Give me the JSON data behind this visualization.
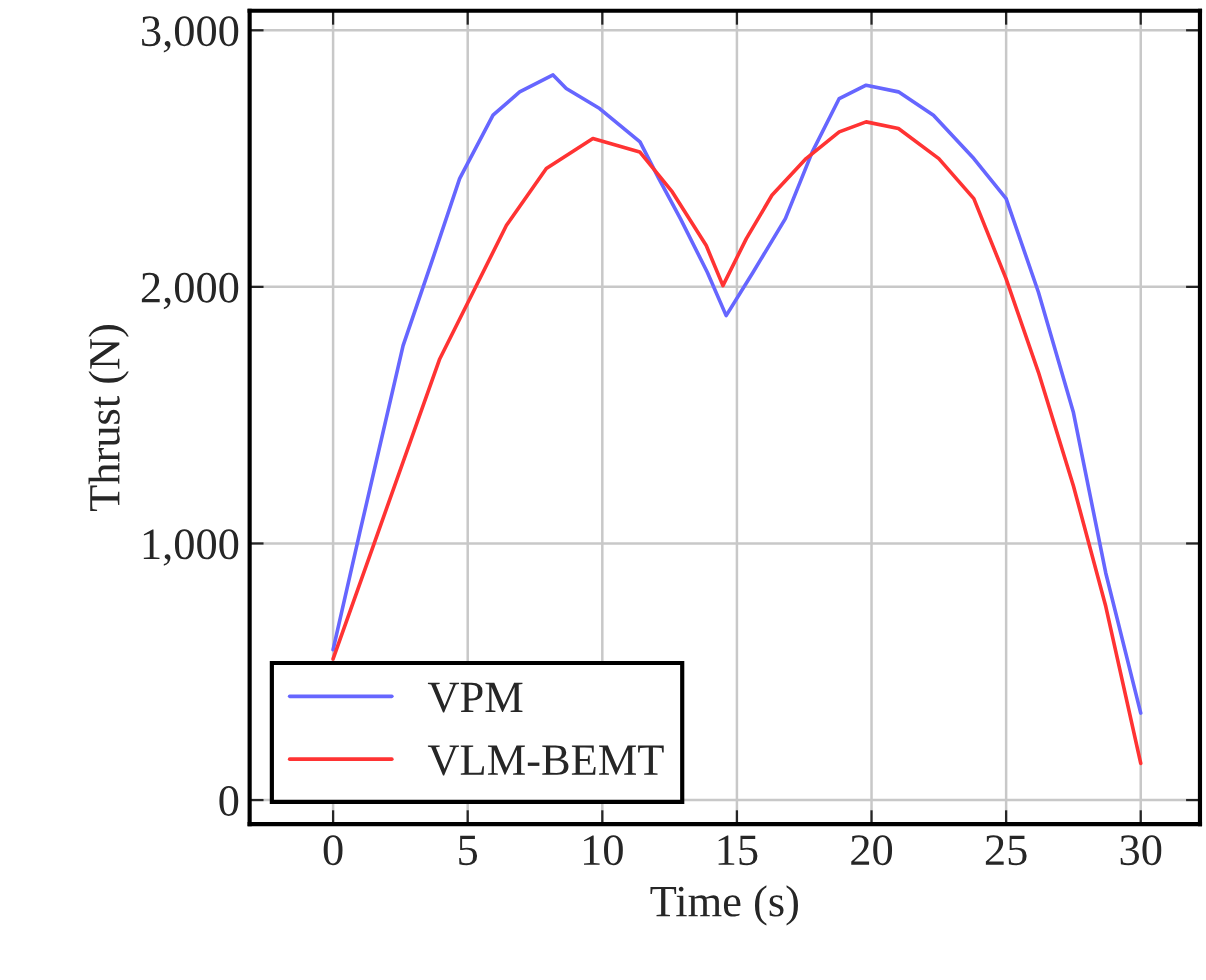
{
  "chart_data": {
    "type": "line",
    "xlabel": "Time (s)",
    "ylabel": "Thrust (N)",
    "xlim": [
      -3.1,
      32.2
    ],
    "ylim": [
      -94,
      3076
    ],
    "xticks": [
      0,
      5,
      10,
      15,
      20,
      25,
      30
    ],
    "yticks": [
      {
        "value": 0,
        "label": "0"
      },
      {
        "value": 1000,
        "label": "1,000"
      },
      {
        "value": 2000,
        "label": "2,000"
      },
      {
        "value": 3000,
        "label": "3,000"
      }
    ],
    "grid": true,
    "legend": "bottom left",
    "marker": "none",
    "line_style": "solid",
    "series": [
      {
        "name": "VPM",
        "color": "#6666ff",
        "x": [
          0,
          0.99,
          2.6,
          3.7,
          4.7,
          5.94,
          6.93,
          8.17,
          8.66,
          9.9,
          11.4,
          12.1,
          12.9,
          13.9,
          14.6,
          15.6,
          16.8,
          17.8,
          18.8,
          19.8,
          21.0,
          22.3,
          23.8,
          25.0,
          26.2,
          27.5,
          28.7,
          30
        ],
        "values": [
          586,
          1042,
          1771,
          2109,
          2422,
          2669,
          2760,
          2826,
          2773,
          2695,
          2565,
          2422,
          2266,
          2057,
          1888,
          2057,
          2266,
          2526,
          2734,
          2786,
          2760,
          2669,
          2500,
          2344,
          1979,
          1510,
          885,
          339
        ]
      },
      {
        "name": "VLM-BEMT",
        "color": "#ff3333",
        "x": [
          0,
          1.49,
          3.96,
          6.44,
          7.92,
          9.65,
          11.39,
          12.6,
          13.86,
          14.48,
          15.35,
          16.3,
          17.57,
          18.8,
          19.8,
          21.0,
          22.5,
          23.8,
          25.0,
          26.2,
          27.5,
          28.7,
          30
        ],
        "values": [
          550,
          990,
          1719,
          2240,
          2461,
          2578,
          2526,
          2370,
          2161,
          2005,
          2188,
          2357,
          2500,
          2604,
          2643,
          2617,
          2500,
          2344,
          2031,
          1667,
          1224,
          755,
          143
        ]
      }
    ]
  }
}
